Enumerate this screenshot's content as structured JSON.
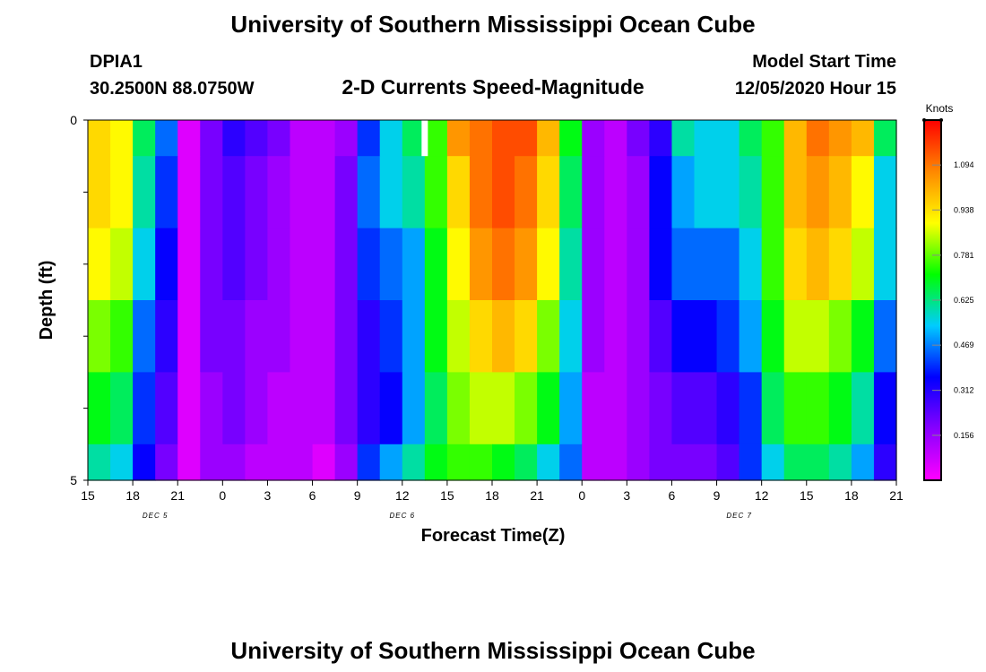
{
  "header": {
    "title": "University of Southern Mississippi Ocean Cube",
    "station": "DPIA1",
    "coords": "30.2500N 88.0750W",
    "subtitle": "2-D Currents Speed-Magnitude",
    "model_label": "Model Start Time",
    "model_time": "12/05/2020 Hour 15"
  },
  "footer": {
    "title": "University of Southern Mississippi Ocean Cube"
  },
  "chart_data": {
    "type": "heatmap",
    "title": "2-D Currents Speed-Magnitude",
    "xlabel": "Forecast Time(Z)",
    "ylabel": "Depth (ft)",
    "y_range": [
      0,
      5
    ],
    "y_ticks": [
      "0",
      "5"
    ],
    "x_range_hours": [
      0,
      54
    ],
    "x_ticks": [
      "15",
      "18",
      "21",
      "0",
      "3",
      "6",
      "9",
      "12",
      "15",
      "18",
      "21",
      "0",
      "3",
      "6",
      "9",
      "12",
      "15",
      "18",
      "21"
    ],
    "date_labels": [
      {
        "text": "DEC 5",
        "hour": 4.5
      },
      {
        "text": "DEC 6",
        "hour": 21
      },
      {
        "text": "DEC 7",
        "hour": 43.5
      }
    ],
    "units": "Knots",
    "colorbar_ticks": [
      "1.094",
      "0.938",
      "0.781",
      "0.625",
      "0.469",
      "0.312",
      "0.156"
    ],
    "colorbar_max": 1.25,
    "colorbar_stops": [
      "#ff00ff",
      "#8800ff",
      "#0000ff",
      "#00ccff",
      "#00ff00",
      "#ffff00",
      "#ff8800",
      "#ff0000"
    ],
    "depth_layers": [
      [
        0.95,
        0.9,
        0.65,
        0.45,
        0.05,
        0.2,
        0.3,
        0.25,
        0.2,
        0.1,
        0.1,
        0.15,
        0.4,
        0.55,
        0.65,
        0.75,
        1.05,
        1.1,
        1.15,
        1.15,
        1.0,
        0.7,
        0.15,
        0.1,
        0.2,
        0.3,
        0.6,
        0.55,
        0.55,
        0.65,
        0.75,
        1.0,
        1.1,
        1.05,
        1.0,
        0.65
      ],
      [
        0.95,
        0.9,
        0.6,
        0.4,
        0.05,
        0.2,
        0.25,
        0.2,
        0.15,
        0.1,
        0.1,
        0.2,
        0.45,
        0.55,
        0.6,
        0.75,
        0.95,
        1.1,
        1.15,
        1.1,
        0.95,
        0.65,
        0.15,
        0.1,
        0.15,
        0.35,
        0.5,
        0.55,
        0.55,
        0.6,
        0.75,
        1.0,
        1.05,
        1.0,
        0.9,
        0.55
      ],
      [
        0.9,
        0.85,
        0.55,
        0.35,
        0.05,
        0.2,
        0.25,
        0.2,
        0.15,
        0.1,
        0.1,
        0.2,
        0.4,
        0.45,
        0.5,
        0.7,
        0.9,
        1.05,
        1.1,
        1.05,
        0.9,
        0.6,
        0.15,
        0.1,
        0.15,
        0.35,
        0.45,
        0.45,
        0.45,
        0.55,
        0.75,
        0.95,
        1.0,
        0.95,
        0.85,
        0.55
      ],
      [
        0.8,
        0.75,
        0.45,
        0.3,
        0.05,
        0.2,
        0.2,
        0.15,
        0.15,
        0.1,
        0.1,
        0.2,
        0.3,
        0.4,
        0.5,
        0.7,
        0.85,
        0.95,
        1.0,
        0.95,
        0.8,
        0.55,
        0.15,
        0.1,
        0.15,
        0.25,
        0.35,
        0.35,
        0.4,
        0.5,
        0.7,
        0.85,
        0.85,
        0.8,
        0.7,
        0.45
      ],
      [
        0.7,
        0.65,
        0.4,
        0.25,
        0.05,
        0.15,
        0.2,
        0.15,
        0.1,
        0.1,
        0.1,
        0.2,
        0.3,
        0.35,
        0.5,
        0.65,
        0.8,
        0.85,
        0.85,
        0.8,
        0.7,
        0.5,
        0.1,
        0.1,
        0.15,
        0.2,
        0.25,
        0.25,
        0.3,
        0.4,
        0.65,
        0.75,
        0.75,
        0.7,
        0.6,
        0.35
      ],
      [
        0.6,
        0.55,
        0.35,
        0.2,
        0.05,
        0.15,
        0.15,
        0.1,
        0.1,
        0.1,
        0.05,
        0.15,
        0.4,
        0.5,
        0.6,
        0.7,
        0.75,
        0.75,
        0.7,
        0.65,
        0.55,
        0.45,
        0.1,
        0.1,
        0.15,
        0.2,
        0.2,
        0.2,
        0.25,
        0.4,
        0.55,
        0.65,
        0.65,
        0.6,
        0.5,
        0.3
      ]
    ],
    "missing_cell": {
      "layer": 0,
      "hour": 22.5
    }
  }
}
